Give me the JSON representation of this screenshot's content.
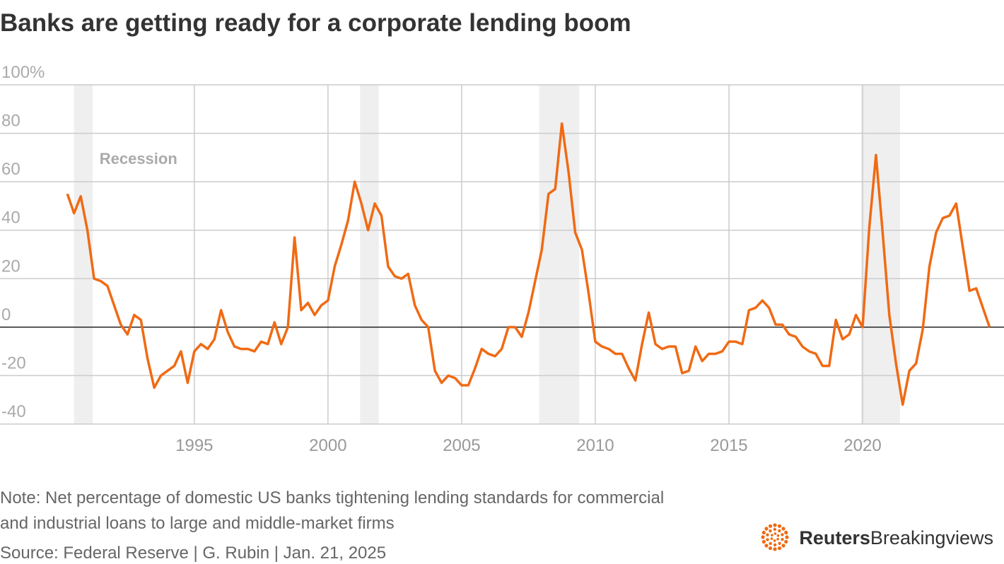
{
  "chart_data": {
    "type": "line",
    "title": "Banks are getting ready for a corporate lending boom",
    "recession_label": "Recession",
    "recessions": [
      [
        1990.5,
        1991.2
      ],
      [
        2001.2,
        2001.9
      ],
      [
        2007.9,
        2009.4
      ],
      [
        2019.95,
        2021.4
      ]
    ],
    "x": [
      1990.25,
      1990.5,
      1990.75,
      1991,
      1991.25,
      1991.5,
      1991.75,
      1992,
      1992.25,
      1992.5,
      1992.75,
      1993,
      1993.25,
      1993.5,
      1993.75,
      1994,
      1994.25,
      1994.5,
      1994.75,
      1995,
      1995.25,
      1995.5,
      1995.75,
      1996,
      1996.25,
      1996.5,
      1996.75,
      1997,
      1997.25,
      1997.5,
      1997.75,
      1998,
      1998.25,
      1998.5,
      1998.75,
      1999,
      1999.25,
      1999.5,
      1999.75,
      2000,
      2000.25,
      2000.5,
      2000.75,
      2001,
      2001.25,
      2001.5,
      2001.75,
      2002,
      2002.25,
      2002.5,
      2002.75,
      2003,
      2003.25,
      2003.5,
      2003.75,
      2004,
      2004.25,
      2004.5,
      2004.75,
      2005,
      2005.25,
      2005.5,
      2005.75,
      2006,
      2006.25,
      2006.5,
      2006.75,
      2007,
      2007.25,
      2007.5,
      2007.75,
      2008,
      2008.25,
      2008.5,
      2008.75,
      2009,
      2009.25,
      2009.5,
      2009.75,
      2010,
      2010.25,
      2010.5,
      2010.75,
      2011,
      2011.25,
      2011.5,
      2011.75,
      2012,
      2012.25,
      2012.5,
      2012.75,
      2013,
      2013.25,
      2013.5,
      2013.75,
      2014,
      2014.25,
      2014.5,
      2014.75,
      2015,
      2015.25,
      2015.5,
      2015.75,
      2016,
      2016.25,
      2016.5,
      2016.75,
      2017,
      2017.25,
      2017.5,
      2017.75,
      2018,
      2018.25,
      2018.5,
      2018.75,
      2019,
      2019.25,
      2019.5,
      2019.75,
      2020,
      2020.25,
      2020.5,
      2020.75,
      2021,
      2021.25,
      2021.5,
      2021.75,
      2022,
      2022.25,
      2022.5,
      2022.75,
      2023,
      2023.25,
      2023.5,
      2023.75,
      2024,
      2024.25,
      2024.5,
      2024.75
    ],
    "values": [
      55,
      47,
      54,
      40,
      20,
      19,
      17,
      9,
      1,
      -3,
      5,
      3,
      -13,
      -25,
      -20,
      -18,
      -16,
      -10,
      -23,
      -10,
      -7,
      -9,
      -5,
      7,
      -2,
      -8,
      -9,
      -9,
      -10,
      -6,
      -7,
      2,
      -7,
      0,
      37,
      7,
      10,
      5,
      9,
      11,
      25,
      34,
      44,
      60,
      51,
      40,
      51,
      46,
      25,
      21,
      20,
      22,
      9,
      3,
      0,
      -18,
      -23,
      -20,
      -21,
      -24,
      -24,
      -17,
      -9,
      -11,
      -12,
      -9,
      0,
      0,
      -4,
      6,
      19,
      32,
      55,
      57,
      84,
      64,
      39,
      32,
      14,
      -6,
      -8,
      -9,
      -11,
      -11,
      -17,
      -22,
      -7,
      6,
      -7,
      -9,
      -8,
      -8,
      -19,
      -18,
      -8,
      -14,
      -11,
      -11,
      -10,
      -6,
      -6,
      -7,
      7,
      8,
      11,
      8,
      1,
      1,
      -3,
      -4,
      -8,
      -10,
      -11,
      -16,
      -16,
      3,
      -5,
      -3,
      5,
      0,
      41,
      71,
      39,
      5,
      -15,
      -32,
      -18,
      -15,
      -1,
      25,
      39,
      45,
      46,
      51,
      33,
      15,
      16,
      8,
      0
    ],
    "color": "#f06a14",
    "xlim": [
      1987.73,
      2025.29
    ],
    "xticks": [
      1995,
      2000,
      2005,
      2010,
      2015,
      2020
    ],
    "ylim": [
      -40,
      100
    ],
    "yticks": [
      -40,
      -20,
      0,
      20,
      40,
      60,
      80,
      {
        "value": 100,
        "label": "100%"
      }
    ],
    "grid": true,
    "note": [
      "Note: Net percentage of domestic US banks tightening lending standards for commercial",
      "and industrial loans to large and middle-market firms"
    ],
    "source": "Source: Federal Reserve | G. Rubin | Jan. 21, 2025",
    "logo": {
      "bold": "Reuters",
      "regular": "Breakingviews"
    }
  }
}
